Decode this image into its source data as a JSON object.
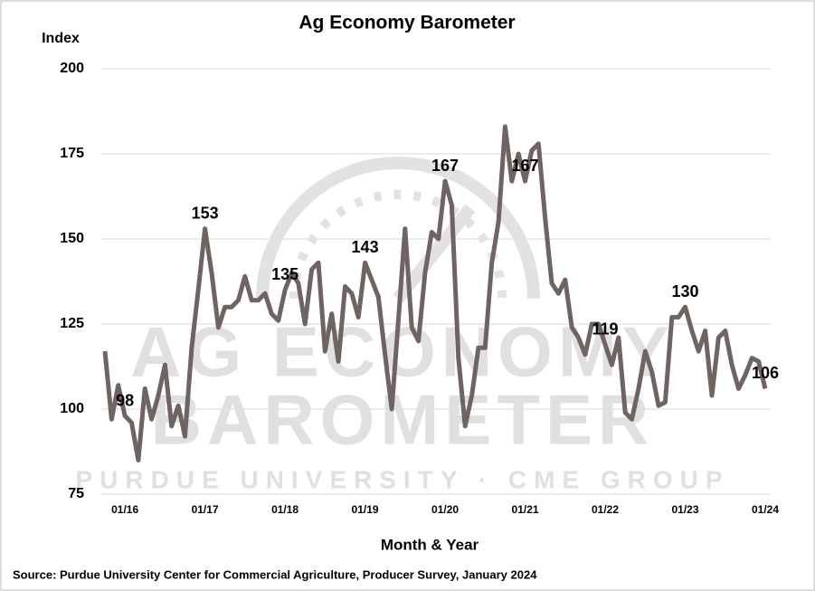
{
  "chart_data": {
    "type": "line",
    "title": "Ag Economy Barometer",
    "y_label": "Index",
    "x_label": "Month & Year",
    "source": "Source: Purdue University Center for Commercial Agriculture, Producer Survey, January 2024",
    "watermark": [
      "AG ECONOMY",
      "BAROMETER",
      "PURDUE UNIVERSITY · CME GROUP"
    ],
    "categories": [
      null,
      null,
      null,
      "01/16",
      null,
      null,
      null,
      null,
      null,
      null,
      null,
      null,
      null,
      null,
      null,
      "01/17",
      null,
      null,
      null,
      null,
      null,
      null,
      null,
      null,
      null,
      null,
      null,
      "01/18",
      null,
      null,
      null,
      null,
      null,
      null,
      null,
      null,
      null,
      null,
      null,
      "01/19",
      null,
      null,
      null,
      null,
      null,
      null,
      null,
      null,
      null,
      null,
      null,
      "01/20",
      null,
      null,
      null,
      null,
      null,
      null,
      null,
      null,
      null,
      null,
      null,
      "01/21",
      null,
      null,
      null,
      null,
      null,
      null,
      null,
      null,
      null,
      null,
      null,
      "01/22",
      null,
      null,
      null,
      null,
      null,
      null,
      null,
      null,
      null,
      null,
      null,
      "01/23",
      null,
      null,
      null,
      null,
      null,
      null,
      null,
      null,
      null,
      null,
      null,
      "01/24"
    ],
    "series": [
      {
        "name": "Ag Economy Barometer",
        "color": "#6e6462",
        "values": [
          117,
          97,
          107,
          98,
          96,
          85,
          106,
          97,
          104,
          113,
          95,
          101,
          92,
          118,
          135,
          153,
          140,
          124,
          130,
          130,
          132,
          139,
          132,
          132,
          134,
          128,
          126,
          135,
          140,
          137,
          125,
          141,
          143,
          117,
          128,
          114,
          136,
          134,
          127,
          143,
          138,
          133,
          116,
          100,
          126,
          153,
          124,
          120,
          140,
          152,
          150,
          167,
          160,
          115,
          95,
          104,
          118,
          118,
          143,
          155,
          183,
          167,
          175,
          167,
          176,
          178,
          156,
          137,
          134,
          138,
          124,
          121,
          116,
          125,
          125,
          119,
          113,
          121,
          99,
          97,
          106,
          117,
          111,
          101,
          102,
          127,
          127,
          130,
          123,
          117,
          123,
          104,
          121,
          123,
          113,
          106,
          110,
          115,
          114,
          106
        ],
        "value_labels": [
          null,
          null,
          null,
          "98",
          null,
          null,
          null,
          null,
          null,
          null,
          null,
          null,
          null,
          null,
          null,
          "153",
          null,
          null,
          null,
          null,
          null,
          null,
          null,
          null,
          null,
          null,
          null,
          "135",
          null,
          null,
          null,
          null,
          null,
          null,
          null,
          null,
          null,
          null,
          null,
          "143",
          null,
          null,
          null,
          null,
          null,
          null,
          null,
          null,
          null,
          null,
          null,
          "167",
          null,
          null,
          null,
          null,
          null,
          null,
          null,
          null,
          null,
          null,
          null,
          "167",
          null,
          null,
          null,
          null,
          null,
          null,
          null,
          null,
          null,
          null,
          null,
          "119",
          null,
          null,
          null,
          null,
          null,
          null,
          null,
          null,
          null,
          null,
          null,
          "130",
          null,
          null,
          null,
          null,
          null,
          null,
          null,
          null,
          null,
          null,
          null,
          "106"
        ]
      }
    ],
    "ylim": [
      75,
      200
    ],
    "yticks": [
      75,
      100,
      125,
      150,
      175,
      200
    ],
    "grid": true
  }
}
